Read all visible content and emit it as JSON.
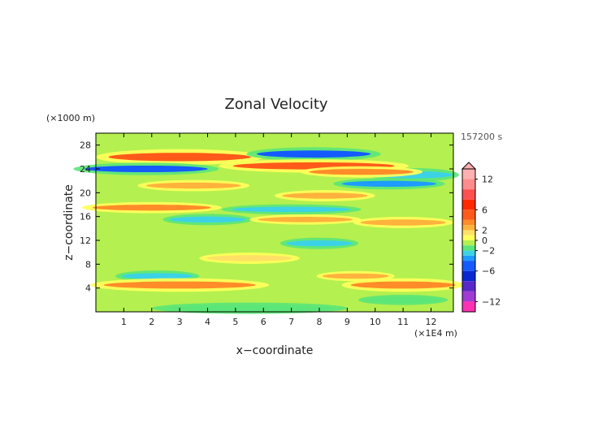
{
  "chart_data": {
    "type": "heatmap",
    "title": "Zonal Velocity",
    "time_label": "157200 s",
    "xlabel": "x−coordinate",
    "ylabel": "z−coordinate",
    "x_unit": "(×1E4 m)",
    "y_unit": "(×1000 m)",
    "x_range": [
      0,
      12.8
    ],
    "y_range": [
      0,
      30
    ],
    "x_ticks": [
      "1",
      "2",
      "3",
      "4",
      "5",
      "6",
      "7",
      "8",
      "9",
      "10",
      "11",
      "12"
    ],
    "y_ticks": [
      "4",
      "8",
      "12",
      "16",
      "20",
      "24",
      "28"
    ],
    "colorbar": {
      "tick_labels": [
        {
          "label": "12",
          "value": 12
        },
        {
          "label": "6",
          "value": 6
        },
        {
          "label": "2",
          "value": 2
        },
        {
          "label": "0",
          "value": 0
        },
        {
          "label": "−2",
          "value": -2
        },
        {
          "label": "−6",
          "value": -6
        },
        {
          "label": "−12",
          "value": -12
        }
      ],
      "levels": [
        {
          "lo": 12,
          "hi": 14,
          "color": "#ffb0b0"
        },
        {
          "lo": 10,
          "hi": 12,
          "color": "#ff8c8c"
        },
        {
          "lo": 8,
          "hi": 10,
          "color": "#ff5050"
        },
        {
          "lo": 6,
          "hi": 8,
          "color": "#ff2a00"
        },
        {
          "lo": 4,
          "hi": 6,
          "color": "#ff5a1a"
        },
        {
          "lo": 3,
          "hi": 4,
          "color": "#ff8c28"
        },
        {
          "lo": 2,
          "hi": 3,
          "color": "#ffb23c"
        },
        {
          "lo": 1,
          "hi": 2,
          "color": "#ffe066"
        },
        {
          "lo": 0,
          "hi": 1,
          "color": "#ffff5a"
        },
        {
          "lo": -1,
          "hi": 0,
          "color": "#b4f050"
        },
        {
          "lo": -2,
          "hi": -1,
          "color": "#5ae678"
        },
        {
          "lo": -3,
          "hi": -2,
          "color": "#3cd2e6"
        },
        {
          "lo": -4,
          "hi": -3,
          "color": "#1e9bff"
        },
        {
          "lo": -6,
          "hi": -4,
          "color": "#145aff"
        },
        {
          "lo": -8,
          "hi": -6,
          "color": "#0a28d2"
        },
        {
          "lo": -10,
          "hi": -8,
          "color": "#5a28c8"
        },
        {
          "lo": -12,
          "hi": -10,
          "color": "#a03cd2"
        },
        {
          "lo": -14,
          "hi": -12,
          "color": "#ff32b4"
        }
      ]
    },
    "features": [
      {
        "x": 3.0,
        "z": 26.0,
        "hw": 3.0,
        "hh": 0.7,
        "v": 5
      },
      {
        "x": 7.8,
        "z": 26.5,
        "hw": 2.4,
        "hh": 0.6,
        "v": -5
      },
      {
        "x": 1.8,
        "z": 24.0,
        "hw": 2.6,
        "hh": 0.55,
        "v": -6
      },
      {
        "x": 7.8,
        "z": 24.5,
        "hw": 3.4,
        "hh": 0.6,
        "v": 5
      },
      {
        "x": 11.4,
        "z": 23.0,
        "hw": 1.6,
        "hh": 0.6,
        "v": -2.5
      },
      {
        "x": 10.5,
        "z": 21.5,
        "hw": 2.0,
        "hh": 0.5,
        "v": -4
      },
      {
        "x": 3.5,
        "z": 21.2,
        "hw": 2.0,
        "hh": 0.5,
        "v": 2.5
      },
      {
        "x": 9.5,
        "z": 23.5,
        "hw": 2.2,
        "hh": 0.5,
        "v": 3
      },
      {
        "x": 2.0,
        "z": 17.5,
        "hw": 2.5,
        "hh": 0.5,
        "v": 3
      },
      {
        "x": 7.0,
        "z": 17.2,
        "hw": 2.5,
        "hh": 0.45,
        "v": -2.5
      },
      {
        "x": 8.2,
        "z": 19.5,
        "hw": 1.8,
        "hh": 0.5,
        "v": 2.5
      },
      {
        "x": 4.0,
        "z": 15.5,
        "hw": 1.6,
        "hh": 0.5,
        "v": -2.5
      },
      {
        "x": 7.5,
        "z": 15.5,
        "hw": 2.0,
        "hh": 0.45,
        "v": 2.5
      },
      {
        "x": 11.0,
        "z": 15.0,
        "hw": 1.8,
        "hh": 0.5,
        "v": 2
      },
      {
        "x": 8.0,
        "z": 11.5,
        "hw": 1.4,
        "hh": 0.5,
        "v": -2.5
      },
      {
        "x": 2.2,
        "z": 6.0,
        "hw": 1.5,
        "hh": 0.5,
        "v": -2.5
      },
      {
        "x": 3.0,
        "z": 4.5,
        "hw": 3.2,
        "hh": 0.6,
        "v": 3.5
      },
      {
        "x": 11.0,
        "z": 4.5,
        "hw": 2.2,
        "hh": 0.6,
        "v": 3
      },
      {
        "x": 9.3,
        "z": 6.0,
        "hw": 1.4,
        "hh": 0.45,
        "v": 2
      },
      {
        "x": 5.5,
        "z": 9.0,
        "hw": 1.8,
        "hh": 0.5,
        "v": 1.5
      },
      {
        "x": 11.0,
        "z": 2.0,
        "hw": 1.6,
        "hh": 0.45,
        "v": -1.5
      },
      {
        "x": 5.5,
        "z": 0.6,
        "hw": 3.5,
        "hh": 0.5,
        "v": -1.5
      }
    ]
  }
}
